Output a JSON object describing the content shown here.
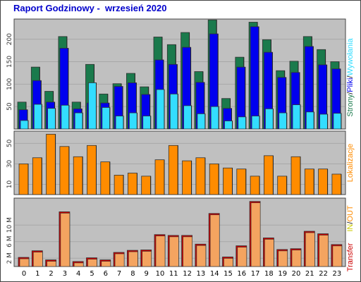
{
  "title": "Raport Godzinowy -  wrzesień 2020",
  "colors": {
    "background": "#c0c0c0",
    "strony": "#1a7a4c",
    "pliki": "#0000ee",
    "wywolania": "#33ddff",
    "lokalizacje": "#ff8c00",
    "transfer": "#cc0000",
    "in": "#cccc00",
    "out": "#ff8c00",
    "transfer_fill": "#f4a460"
  },
  "chart_data": [
    {
      "type": "bar",
      "name": "strony-pliki-wywolania",
      "categories": [
        "0",
        "1",
        "2",
        "3",
        "4",
        "5",
        "6",
        "7",
        "8",
        "9",
        "10",
        "11",
        "12",
        "13",
        "14",
        "15",
        "16",
        "17",
        "18",
        "19",
        "20",
        "21",
        "22",
        "23"
      ],
      "ylim": [
        0,
        245
      ],
      "yticks": [
        50,
        100,
        150,
        200
      ],
      "legend": [
        {
          "label": "Strony",
          "color": "#1a7a4c"
        },
        {
          "label": "Pliki",
          "color": "#0000ee"
        },
        {
          "label": "Wywołania",
          "color": "#33ddff"
        }
      ],
      "series": [
        {
          "name": "Strony",
          "values": [
            60,
            138,
            84,
            206,
            60,
            144,
            78,
            101,
            124,
            94,
            205,
            188,
            215,
            128,
            243,
            68,
            160,
            238,
            199,
            130,
            151,
            206,
            177,
            150
          ]
        },
        {
          "name": "Pliki",
          "values": [
            43,
            108,
            60,
            180,
            45,
            58,
            58,
            95,
            103,
            77,
            154,
            144,
            182,
            104,
            212,
            46,
            138,
            228,
            171,
            115,
            126,
            184,
            143,
            134
          ]
        },
        {
          "name": "Wywołania",
          "values": [
            19,
            55,
            46,
            53,
            36,
            103,
            48,
            29,
            36,
            29,
            88,
            78,
            52,
            34,
            50,
            18,
            27,
            29,
            45,
            36,
            54,
            38,
            33,
            35
          ]
        }
      ]
    },
    {
      "type": "bar",
      "name": "lokalizacje",
      "categories": [
        "0",
        "1",
        "2",
        "3",
        "4",
        "5",
        "6",
        "7",
        "8",
        "9",
        "10",
        "11",
        "12",
        "13",
        "14",
        "15",
        "16",
        "17",
        "18",
        "19",
        "20",
        "21",
        "22",
        "23"
      ],
      "ylim": [
        0,
        62
      ],
      "yticks": [
        10,
        30,
        50
      ],
      "legend": [
        {
          "label": "Lokalizacje",
          "color": "#ff8c00"
        }
      ],
      "series": [
        {
          "name": "Lokalizacje",
          "values": [
            30,
            36,
            59,
            47,
            37,
            48,
            32,
            19,
            21,
            18,
            34,
            48,
            33,
            36,
            30,
            26,
            25,
            18,
            38,
            18,
            37,
            25,
            25,
            20
          ]
        }
      ]
    },
    {
      "type": "bar",
      "name": "transfer",
      "categories": [
        "0",
        "1",
        "2",
        "3",
        "4",
        "5",
        "6",
        "7",
        "8",
        "9",
        "10",
        "11",
        "12",
        "13",
        "14",
        "15",
        "16",
        "17",
        "18",
        "19",
        "20",
        "21",
        "22",
        "23"
      ],
      "ylim": [
        0,
        16.5
      ],
      "yticks_labels": [
        "2 M",
        "6 M",
        "10 M"
      ],
      "yticks": [
        2,
        6,
        10
      ],
      "legend": [
        {
          "label": "Transfer",
          "color": "#cc0000"
        },
        {
          "label": "IN",
          "color": "#cccc00"
        },
        {
          "label": "OUT",
          "color": "#ff8c00"
        }
      ],
      "legend_separator": "/",
      "series": [
        {
          "name": "Transfer",
          "values": [
            2.2,
            3.8,
            1.6,
            13.2,
            1.2,
            2.1,
            1.6,
            3.4,
            3.9,
            4.0,
            7.7,
            7.5,
            7.5,
            5.4,
            12.8,
            2.3,
            5.0,
            15.7,
            6.9,
            4.1,
            4.3,
            8.5,
            7.9,
            5.3
          ]
        }
      ]
    }
  ],
  "xtick_labels": [
    "0",
    "1",
    "2",
    "3",
    "4",
    "5",
    "6",
    "7",
    "8",
    "9",
    "10",
    "11",
    "12",
    "13",
    "14",
    "15",
    "16",
    "17",
    "18",
    "19",
    "20",
    "21",
    "22",
    "23"
  ]
}
